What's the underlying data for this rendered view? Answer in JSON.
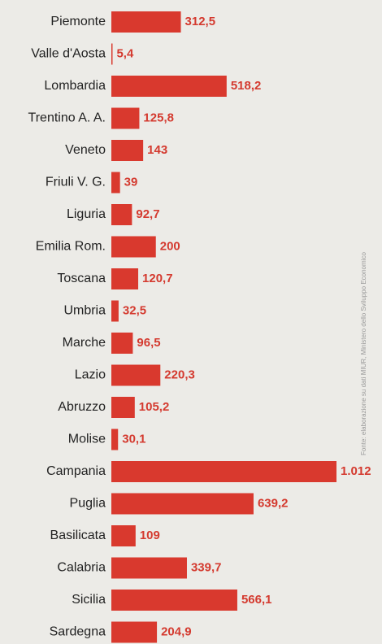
{
  "chart_data": {
    "type": "bar",
    "orientation": "horizontal",
    "color": "#d9392e",
    "categories": [
      "Piemonte",
      "Valle d'Aosta",
      "Lombardia",
      "Trentino A. A.",
      "Veneto",
      "Friuli V. G.",
      "Liguria",
      "Emilia Rom.",
      "Toscana",
      "Umbria",
      "Marche",
      "Lazio",
      "Abruzzo",
      "Molise",
      "Campania",
      "Puglia",
      "Basilicata",
      "Calabria",
      "Sicilia",
      "Sardegna"
    ],
    "values": [
      312.5,
      5.4,
      518.2,
      125.8,
      143,
      39,
      92.7,
      200,
      120.7,
      32.5,
      96.5,
      220.3,
      105.2,
      30.1,
      1012,
      639.2,
      109,
      339.7,
      566.1,
      204.9
    ],
    "value_labels": [
      "312,5",
      "5,4",
      "518,2",
      "125,8",
      "143",
      "39",
      "92,7",
      "200",
      "120,7",
      "32,5",
      "96,5",
      "220,3",
      "105,2",
      "30,1",
      "1.012",
      "639,2",
      "109",
      "339,7",
      "566,1",
      "204,9"
    ],
    "source": "Fonte: elaborazione su dati MIUR, Ministero dello Sviluppo Economico"
  }
}
